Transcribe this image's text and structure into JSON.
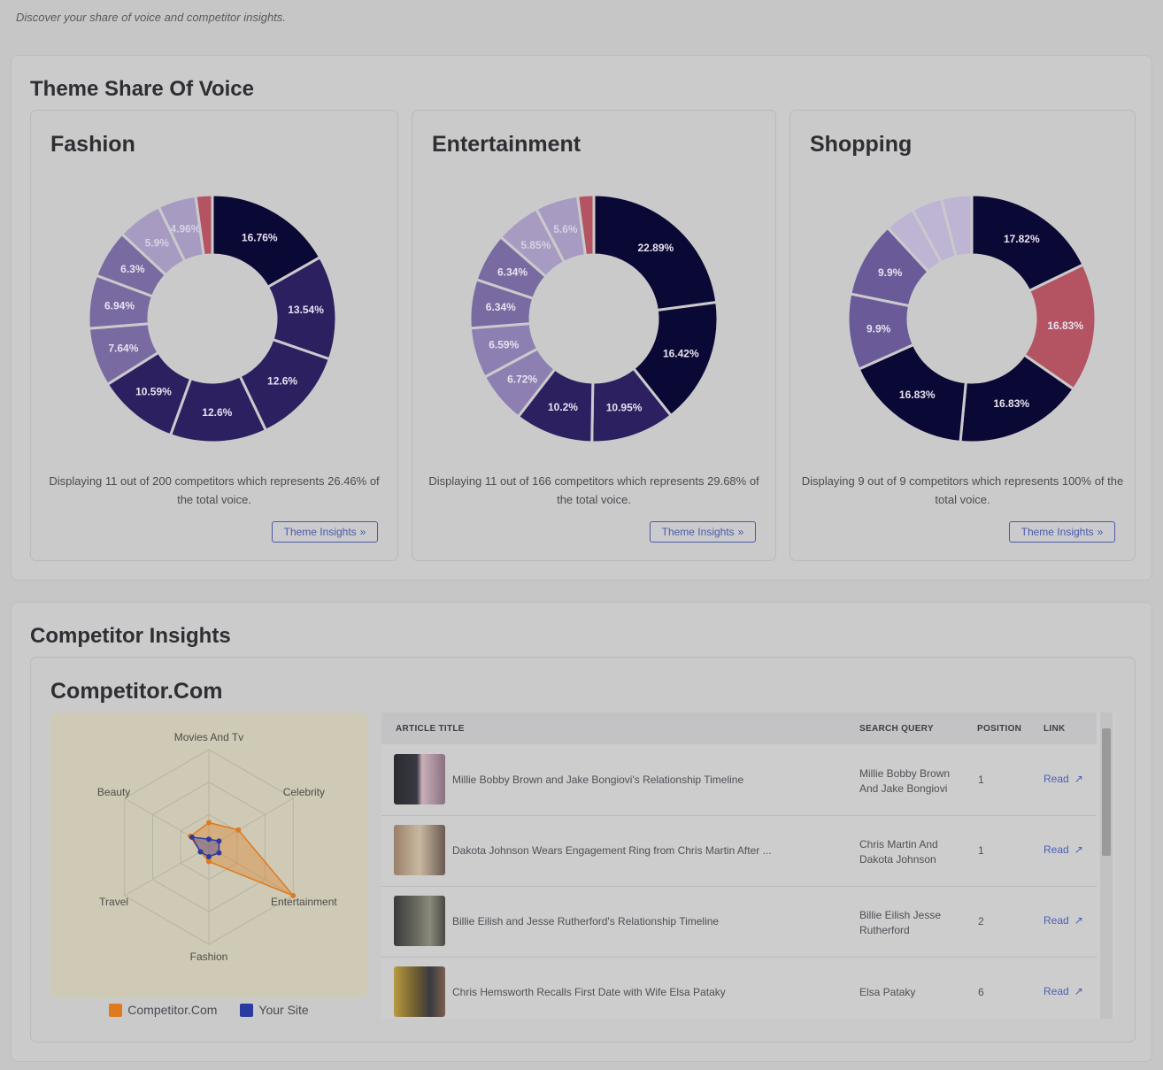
{
  "page": {
    "subtitle": "Discover your share of voice and competitor insights."
  },
  "theme_section": {
    "title": "Theme Share Of Voice",
    "button_label": "Theme Insights"
  },
  "chart_data": [
    {
      "type": "pie",
      "title": "Fashion",
      "labels": [
        "16.76%",
        "13.54%",
        "12.6%",
        "12.6%",
        "10.59%",
        "7.64%",
        "6.94%",
        "6.3%",
        "5.9%",
        "4.96%",
        ""
      ],
      "values": [
        16.76,
        13.54,
        12.6,
        12.6,
        10.59,
        7.64,
        6.94,
        6.3,
        5.9,
        4.96,
        2.17
      ],
      "colors": [
        "#0a0834",
        "#2c2060",
        "#2c2060",
        "#2c2060",
        "#2c2060",
        "#7a6aa2",
        "#7a6aa2",
        "#7a6aa2",
        "#a79bc2",
        "#a79bc2",
        "#b45463"
      ],
      "summary": "Displaying 11 out of 200 competitors which represents 26.46% of the total voice."
    },
    {
      "type": "pie",
      "title": "Entertainment",
      "labels": [
        "22.89%",
        "16.42%",
        "10.95%",
        "10.2%",
        "6.72%",
        "6.59%",
        "6.34%",
        "6.34%",
        "5.85%",
        "5.6%",
        ""
      ],
      "values": [
        22.89,
        16.42,
        10.95,
        10.2,
        6.72,
        6.59,
        6.34,
        6.34,
        5.85,
        5.6,
        2.1
      ],
      "colors": [
        "#0a0834",
        "#0a0834",
        "#2c2060",
        "#2c2060",
        "#8d7fb2",
        "#8d7fb2",
        "#7a6aa2",
        "#7a6aa2",
        "#a79bc2",
        "#a79bc2",
        "#b45463"
      ],
      "summary": "Displaying 11 out of 166 competitors which represents 29.68% of the total voice."
    },
    {
      "type": "pie",
      "title": "Shopping",
      "labels": [
        "17.82%",
        "16.83%",
        "16.83%",
        "16.83%",
        "9.9%",
        "9.9%",
        "",
        "",
        ""
      ],
      "values": [
        17.82,
        16.83,
        16.83,
        16.83,
        9.9,
        9.9,
        3.96,
        3.96,
        3.97
      ],
      "colors": [
        "#0a0834",
        "#b45463",
        "#0a0834",
        "#0a0834",
        "#6a5a98",
        "#6a5a98",
        "#beb4d4",
        "#beb4d4",
        "#beb4d4"
      ],
      "summary": "Displaying 9 out of 9 competitors which represents 100% of the total voice."
    },
    {
      "type": "radar",
      "axes": [
        "Movies And Tv",
        "Celebrity",
        "Entertainment",
        "Fashion",
        "Travel",
        "Beauty"
      ],
      "series": [
        {
          "name": "Competitor.Com",
          "color": "#e07a1e",
          "values": [
            0.25,
            0.35,
            1.0,
            0.15,
            0.1,
            0.22
          ]
        },
        {
          "name": "Your Site",
          "color": "#2a3aa0",
          "values": [
            0.08,
            0.12,
            0.12,
            0.1,
            0.1,
            0.2
          ]
        }
      ]
    }
  ],
  "competitor_section": {
    "title": "Competitor Insights",
    "card_title": "Competitor.Com",
    "legend": [
      {
        "label": "Competitor.Com",
        "color": "#e07a1e"
      },
      {
        "label": "Your Site",
        "color": "#2a3aa0"
      }
    ],
    "table": {
      "headers": {
        "title": "ARTICLE TITLE",
        "query": "SEARCH QUERY",
        "position": "POSITION",
        "link": "LINK"
      },
      "rows": [
        {
          "title": "Millie Bobby Brown and Jake Bongiovi's Relationship Timeline",
          "query": "Millie Bobby Brown And Jake Bongiovi",
          "position": "1",
          "link": "Read"
        },
        {
          "title": "Dakota Johnson Wears Engagement Ring from Chris Martin After ...",
          "query": "Chris Martin And Dakota Johnson",
          "position": "1",
          "link": "Read"
        },
        {
          "title": "Billie Eilish and Jesse Rutherford's Relationship Timeline",
          "query": "Billie Eilish Jesse Rutherford",
          "position": "2",
          "link": "Read"
        },
        {
          "title": "Chris Hemsworth Recalls First Date with Wife Elsa Pataky",
          "query": "Elsa Pataky",
          "position": "6",
          "link": "Read"
        }
      ]
    }
  }
}
